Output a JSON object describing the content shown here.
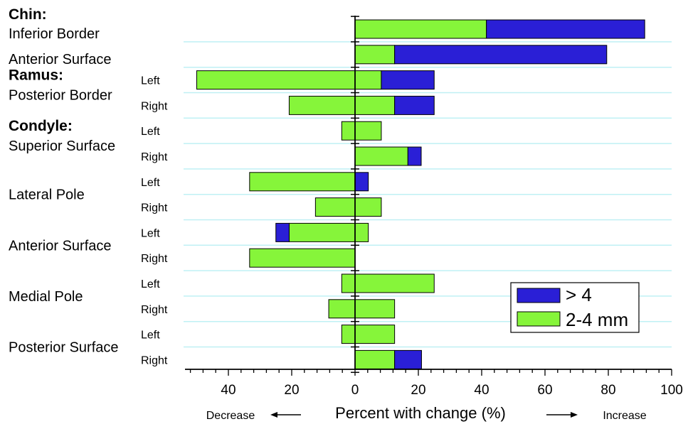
{
  "chart_data": {
    "type": "bar",
    "orientation": "horizontal-diverging-stacked",
    "xlabel": "Percent with change (%)",
    "direction_left": "Decrease",
    "direction_right": "Increase",
    "xlim": [
      -53,
      100
    ],
    "xticks": [
      -40,
      -20,
      0,
      20,
      40,
      60,
      80,
      100
    ],
    "xtick_labels": [
      "40",
      "20",
      "0",
      "20",
      "40",
      "60",
      "80",
      "100"
    ],
    "grid": "horizontal lines between rows",
    "legend_position": "bottom-right",
    "colors": {
      "over4": "#2a1fd6",
      "mm2_4": "#86f53a",
      "grid": "#bff0f4"
    },
    "series": [
      {
        "key": "over4",
        "name": "> 4"
      },
      {
        "key": "mm2_4",
        "name": "2-4 mm"
      }
    ],
    "groups": [
      {
        "title": "Chin:",
        "name": "",
        "rows": [
          {
            "region": "Inferior Border",
            "side": "",
            "dec_2_4": 0,
            "dec_over4": 0,
            "inc_2_4": 41.5,
            "inc_over4": 50
          },
          {
            "region": "Anterior Surface",
            "side": "",
            "dec_2_4": 0,
            "dec_over4": 0,
            "inc_2_4": 12.5,
            "inc_over4": 67
          }
        ]
      },
      {
        "title": "Ramus:",
        "name": "Posterior Border",
        "rows": [
          {
            "side": "Left",
            "dec_2_4": 50,
            "dec_over4": 0,
            "inc_2_4": 8.3,
            "inc_over4": 16.7
          },
          {
            "side": "Right",
            "dec_2_4": 20.8,
            "dec_over4": 0,
            "inc_2_4": 12.5,
            "inc_over4": 12.5
          }
        ]
      },
      {
        "title": "Condyle:",
        "name": "Superior Surface",
        "rows": [
          {
            "side": "Left",
            "dec_2_4": 4.2,
            "dec_over4": 0,
            "inc_2_4": 8.3,
            "inc_over4": 0
          },
          {
            "side": "Right",
            "dec_2_4": 0,
            "dec_over4": 0,
            "inc_2_4": 16.7,
            "inc_over4": 4.2
          }
        ]
      },
      {
        "title": "",
        "name": "Lateral Pole",
        "rows": [
          {
            "side": "Left",
            "dec_2_4": 33.3,
            "dec_over4": 0,
            "inc_2_4": 0,
            "inc_over4": 4.2
          },
          {
            "side": "Right",
            "dec_2_4": 12.5,
            "dec_over4": 0,
            "inc_2_4": 8.3,
            "inc_over4": 0
          }
        ]
      },
      {
        "title": "",
        "name": "Anterior Surface",
        "rows": [
          {
            "side": "Left",
            "dec_2_4": 20.8,
            "dec_over4": 4.2,
            "inc_2_4": 4.2,
            "inc_over4": 0
          },
          {
            "side": "Right",
            "dec_2_4": 33.3,
            "dec_over4": 0,
            "inc_2_4": 0,
            "inc_over4": 0
          }
        ]
      },
      {
        "title": "",
        "name": "Medial Pole",
        "rows": [
          {
            "side": "Left",
            "dec_2_4": 4.2,
            "dec_over4": 0,
            "inc_2_4": 25,
            "inc_over4": 0
          },
          {
            "side": "Right",
            "dec_2_4": 8.3,
            "dec_over4": 0,
            "inc_2_4": 12.5,
            "inc_over4": 0
          }
        ]
      },
      {
        "title": "",
        "name": "Posterior Surface",
        "rows": [
          {
            "side": "Left",
            "dec_2_4": 4.2,
            "dec_over4": 0,
            "inc_2_4": 12.5,
            "inc_over4": 0
          },
          {
            "side": "Right",
            "dec_2_4": 0,
            "dec_over4": 0,
            "inc_2_4": 12.5,
            "inc_over4": 8.5
          }
        ]
      }
    ]
  }
}
